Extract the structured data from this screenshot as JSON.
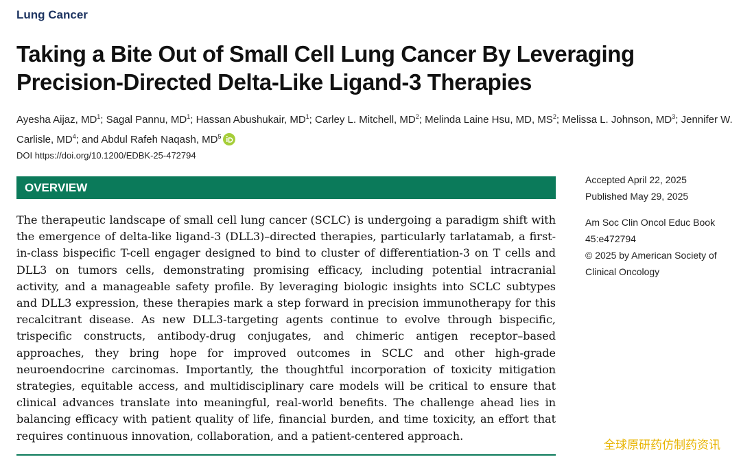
{
  "header": {
    "section": "Lung Cancer",
    "title": "Taking a Bite Out of Small Cell Lung Cancer By Leveraging Precision-Directed Delta-Like Ligand-3 Therapies"
  },
  "authors": [
    {
      "name": "Ayesha Aijaz, MD",
      "sup": "1",
      "sep": "; "
    },
    {
      "name": "Sagal Pannu, MD",
      "sup": "1",
      "sep": "; "
    },
    {
      "name": "Hassan Abushukair, MD",
      "sup": "1",
      "sep": "; "
    },
    {
      "name": "Carley L. Mitchell, MD",
      "sup": "2",
      "sep": "; "
    },
    {
      "name": "Melinda Laine Hsu, MD, MS",
      "sup": "2",
      "sep": "; "
    },
    {
      "name": "Melissa L. Johnson, MD",
      "sup": "3",
      "sep": "; "
    },
    {
      "name": "Jennifer W. Carlisle, MD",
      "sup": "4",
      "sep": "; and "
    },
    {
      "name": "Abdul Rafeh Naqash, MD",
      "sup": "5"
    }
  ],
  "doi": "DOI https://doi.org/10.1200/EDBK-25-472794",
  "overview": {
    "heading": "OVERVIEW",
    "text": "The therapeutic landscape of small cell lung cancer (SCLC) is undergoing a paradigm shift with the emergence of delta-like ligand-3 (DLL3)–directed therapies, particularly tarlatamab, a first-in-class bispecific T-cell engager designed to bind to cluster of differentiation-3 on T cells and DLL3 on tumors cells, demonstrating promising efficacy, including potential intracranial activity, and a manageable safety profile. By leveraging biologic insights into SCLC subtypes and DLL3 expression, these therapies mark a step forward in precision immunotherapy for this recalcitrant disease. As new DLL3-targeting agents continue to evolve through bispecific, trispecific constructs, antibody-drug conjugates, and chimeric antigen receptor–based approaches, they bring hope for improved outcomes in SCLC and other high-grade neuroendocrine carcinomas. Importantly, the thoughtful incorporation of toxicity mitigation strategies, equitable access, and multidisciplinary care models will be critical to ensure that clinical advances translate into meaningful, real-world benefits. The challenge ahead lies in balancing efficacy with patient quality of life, financial burden, and time toxicity, an effort that requires continuous innovation, collaboration, and a patient-centered approach."
  },
  "sidebar": {
    "accepted": "Accepted April 22, 2025",
    "published": "Published May 29, 2025",
    "citation": "Am Soc Clin Oncol Educ Book 45:e472794",
    "copyright": "© 2025 by American Society of Clinical Oncology"
  },
  "watermark": "全球原研药仿制药资讯"
}
